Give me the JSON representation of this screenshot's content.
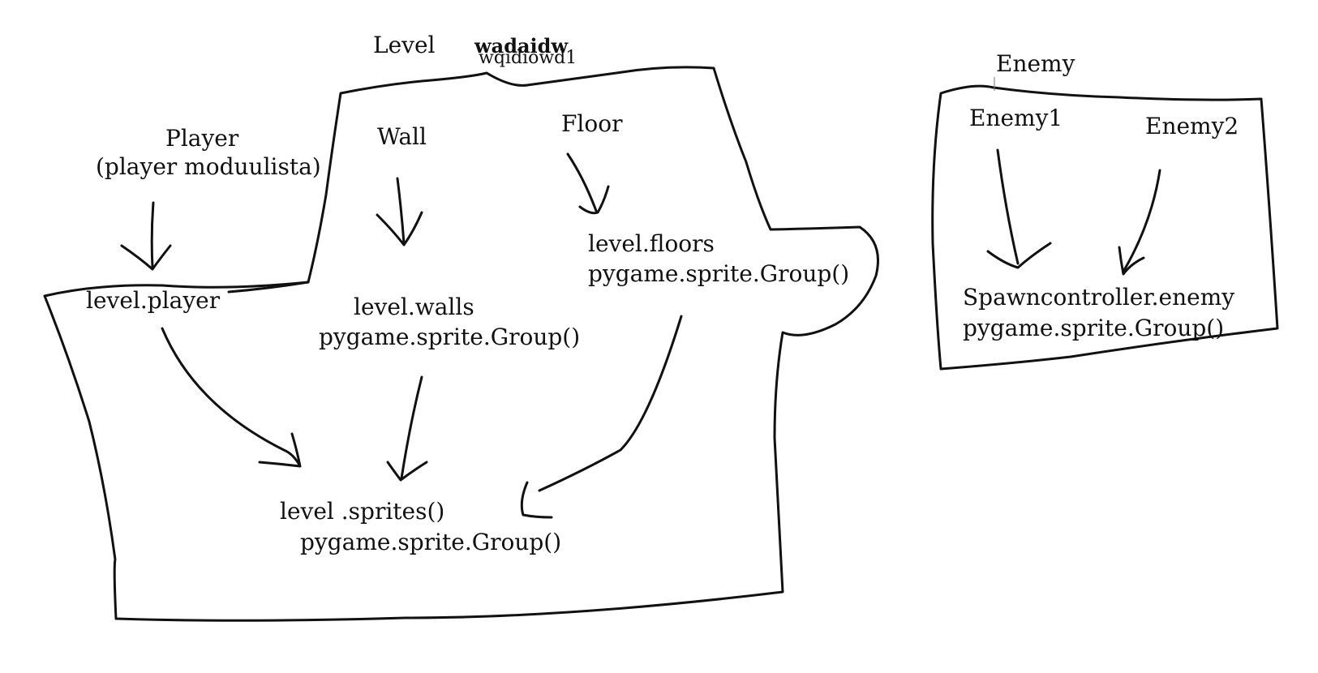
{
  "diagram": {
    "level": {
      "title": "Level",
      "scribble_top": "wadaidw",
      "scribble_bottom": "wqidiowd1",
      "wall_label": "Wall",
      "floor_label": "Floor",
      "walls_group_line1": "level.walls",
      "walls_group_line2": "pygame.sprite.Group()",
      "floors_group_line1": "level.floors",
      "floors_group_line2": "pygame.sprite.Group()",
      "player_attr": "level.player",
      "sprites_line1": "level .sprites()",
      "sprites_line2": "pygame.sprite.Group()"
    },
    "player": {
      "title_line1": "Player",
      "title_line2": "(player moduulista)"
    },
    "enemy": {
      "title": "Enemy",
      "enemy1": "Enemy1",
      "enemy2": "Enemy2",
      "group_line1": "Spawncontroller.enemy",
      "group_line2": "pygame.sprite.Group()"
    }
  },
  "colors": {
    "ink": "#111111",
    "background": "#ffffff"
  }
}
